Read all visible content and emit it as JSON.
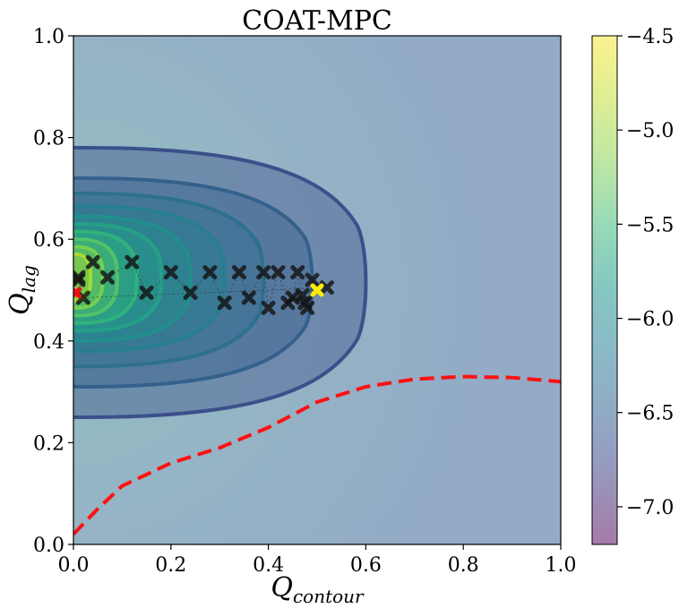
{
  "chart_data": {
    "type": "contour",
    "title": "COAT-MPC",
    "xlabel": "Q",
    "xlabel_sub": "contour",
    "ylabel": "Q",
    "ylabel_sub": "lag",
    "xlim": [
      0.0,
      1.0
    ],
    "ylim": [
      0.0,
      1.0
    ],
    "xticks": [
      0.0,
      0.2,
      0.4,
      0.6,
      0.8,
      1.0
    ],
    "yticks": [
      0.0,
      0.2,
      0.4,
      0.6,
      0.8,
      1.0
    ],
    "xtick_labels": [
      "0.0",
      "0.2",
      "0.4",
      "0.6",
      "0.8",
      "1.0"
    ],
    "ytick_labels": [
      "0.0",
      "0.2",
      "0.4",
      "0.6",
      "0.8",
      "1.0"
    ],
    "colorbar": {
      "range": [
        -7.2,
        -4.5
      ],
      "ticks": [
        -7.0,
        -6.5,
        -6.0,
        -5.5,
        -5.0,
        -4.5
      ],
      "tick_labels": [
        "−7.0",
        "−6.5",
        "−6.0",
        "−5.5",
        "−5.0",
        "−4.5"
      ]
    },
    "background_value": -6.45,
    "contours": [
      {
        "level": -6.4,
        "x_extent": 0.6,
        "y_low": 0.25,
        "y_high": 0.78
      },
      {
        "level": -6.2,
        "x_extent": 0.49,
        "y_low": 0.31,
        "y_high": 0.72
      },
      {
        "level": -6.0,
        "x_extent": 0.39,
        "y_low": 0.35,
        "y_high": 0.69
      },
      {
        "level": -5.8,
        "x_extent": 0.31,
        "y_low": 0.38,
        "y_high": 0.665
      },
      {
        "level": -5.6,
        "x_extent": 0.24,
        "y_low": 0.4,
        "y_high": 0.645
      },
      {
        "level": -5.4,
        "x_extent": 0.18,
        "y_low": 0.42,
        "y_high": 0.63
      },
      {
        "level": -5.2,
        "x_extent": 0.13,
        "y_low": 0.435,
        "y_high": 0.615
      },
      {
        "level": -5.0,
        "x_extent": 0.09,
        "y_low": 0.45,
        "y_high": 0.6
      },
      {
        "level": -4.85,
        "x_extent": 0.06,
        "y_low": 0.465,
        "y_high": 0.585
      },
      {
        "level": -4.7,
        "x_extent": 0.035,
        "y_low": 0.48,
        "y_high": 0.57
      }
    ],
    "constraint_boundary": {
      "style": "red-dashed",
      "x": [
        0.0,
        0.05,
        0.1,
        0.2,
        0.3,
        0.4,
        0.5,
        0.6,
        0.7,
        0.8,
        0.9,
        1.0
      ],
      "y": [
        0.02,
        0.07,
        0.115,
        0.16,
        0.19,
        0.23,
        0.28,
        0.31,
        0.325,
        0.33,
        0.328,
        0.32
      ]
    },
    "samples": {
      "x": [
        0.01,
        0.04,
        0.07,
        0.12,
        0.15,
        0.2,
        0.24,
        0.28,
        0.31,
        0.34,
        0.36,
        0.39,
        0.4,
        0.42,
        0.44,
        0.45,
        0.46,
        0.47,
        0.475,
        0.48,
        0.49,
        0.52,
        0.02,
        0.01
      ],
      "y": [
        0.525,
        0.555,
        0.525,
        0.555,
        0.495,
        0.535,
        0.495,
        0.535,
        0.475,
        0.535,
        0.485,
        0.535,
        0.465,
        0.535,
        0.475,
        0.485,
        0.535,
        0.49,
        0.475,
        0.465,
        0.52,
        0.505,
        0.485,
        0.52
      ]
    },
    "start_point": {
      "x": 0.005,
      "y": 0.495,
      "color": "#ee1111"
    },
    "best_point": {
      "x": 0.5,
      "y": 0.5,
      "color": "#ffee00"
    }
  }
}
